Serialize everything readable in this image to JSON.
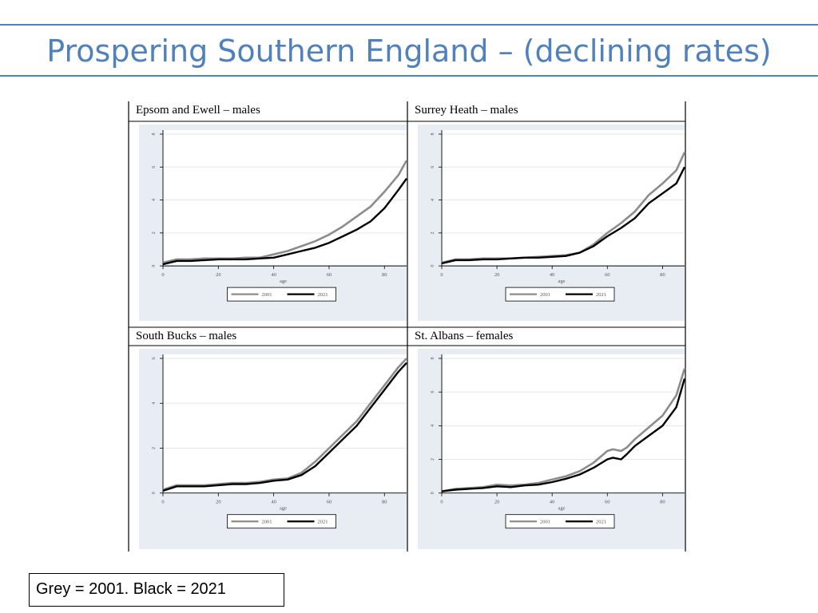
{
  "slide": {
    "title": "Prospering Southern England – (declining rates)",
    "note": "Grey = 2001. Black = 2021"
  },
  "colors": {
    "title": "#4f81bd",
    "series_2001": "#8c8c8c",
    "series_2021": "#000000",
    "plot_bg": "#e8edf3"
  },
  "chart_data": [
    {
      "type": "line",
      "title": "Epsom and Ewell – males",
      "xlabel": "age",
      "xlim": [
        0,
        88
      ],
      "ylim": [
        0,
        8
      ],
      "xticks": [
        0,
        20,
        40,
        60,
        80
      ],
      "yticks": [
        0,
        2,
        4,
        6,
        8
      ],
      "ytick_labels": [
        "0",
        "2",
        "4",
        "6",
        "8"
      ],
      "x": [
        0,
        5,
        10,
        15,
        20,
        25,
        30,
        35,
        40,
        45,
        50,
        55,
        60,
        65,
        70,
        75,
        80,
        85,
        88
      ],
      "series": [
        {
          "name": "2001",
          "values": [
            0.2,
            0.4,
            0.4,
            0.45,
            0.45,
            0.45,
            0.5,
            0.5,
            0.7,
            0.9,
            1.2,
            1.5,
            1.9,
            2.4,
            3.0,
            3.6,
            4.5,
            5.5,
            6.4
          ]
        },
        {
          "name": "2021",
          "values": [
            0.1,
            0.3,
            0.3,
            0.35,
            0.4,
            0.4,
            0.4,
            0.45,
            0.5,
            0.7,
            0.9,
            1.1,
            1.4,
            1.8,
            2.2,
            2.7,
            3.5,
            4.6,
            5.3
          ]
        }
      ],
      "legend": [
        "2001",
        "2021"
      ]
    },
    {
      "type": "line",
      "title": "Surrey Heath – males",
      "xlabel": "age",
      "xlim": [
        0,
        88
      ],
      "ylim": [
        0,
        8
      ],
      "xticks": [
        0,
        20,
        40,
        60,
        80
      ],
      "yticks": [
        0,
        2,
        4,
        6,
        8
      ],
      "ytick_labels": [
        "0",
        "2",
        "4",
        "6",
        "8"
      ],
      "x": [
        0,
        5,
        10,
        15,
        20,
        25,
        30,
        35,
        40,
        45,
        50,
        55,
        60,
        65,
        70,
        75,
        80,
        85,
        88
      ],
      "series": [
        {
          "name": "2001",
          "values": [
            0.2,
            0.4,
            0.4,
            0.45,
            0.45,
            0.45,
            0.5,
            0.55,
            0.6,
            0.65,
            0.8,
            1.3,
            2.0,
            2.6,
            3.3,
            4.3,
            5.0,
            5.8,
            6.9
          ]
        },
        {
          "name": "2021",
          "values": [
            0.15,
            0.35,
            0.35,
            0.4,
            0.4,
            0.45,
            0.5,
            0.5,
            0.55,
            0.6,
            0.8,
            1.2,
            1.8,
            2.3,
            2.9,
            3.8,
            4.4,
            5.0,
            6.0
          ]
        }
      ],
      "legend": [
        "2001",
        "2021"
      ]
    },
    {
      "type": "line",
      "title": "South Bucks – males",
      "xlabel": "age",
      "xlim": [
        0,
        88
      ],
      "ylim": [
        0,
        6
      ],
      "xticks": [
        0,
        20,
        40,
        60,
        80
      ],
      "yticks": [
        0,
        2,
        4,
        6
      ],
      "ytick_labels": [
        "0",
        "2",
        "4",
        "6"
      ],
      "x": [
        0,
        5,
        10,
        15,
        20,
        25,
        30,
        35,
        40,
        45,
        50,
        55,
        60,
        65,
        70,
        75,
        80,
        85,
        88
      ],
      "series": [
        {
          "name": "2001",
          "values": [
            0.15,
            0.35,
            0.35,
            0.35,
            0.4,
            0.45,
            0.45,
            0.5,
            0.6,
            0.65,
            0.9,
            1.4,
            2.0,
            2.6,
            3.2,
            4.0,
            4.8,
            5.6,
            6.0
          ]
        },
        {
          "name": "2021",
          "values": [
            0.1,
            0.3,
            0.3,
            0.3,
            0.35,
            0.4,
            0.4,
            0.45,
            0.55,
            0.6,
            0.8,
            1.2,
            1.8,
            2.4,
            3.0,
            3.8,
            4.6,
            5.4,
            5.8
          ]
        }
      ],
      "legend": [
        "2001",
        "2021"
      ]
    },
    {
      "type": "line",
      "title": "St. Albans – females",
      "xlabel": "age",
      "xlim": [
        0,
        88
      ],
      "ylim": [
        0,
        8
      ],
      "xticks": [
        0,
        20,
        40,
        60,
        80
      ],
      "yticks": [
        0,
        2,
        4,
        6,
        8
      ],
      "ytick_labels": [
        "0",
        "2",
        "4",
        "6",
        "8"
      ],
      "x": [
        0,
        5,
        10,
        15,
        20,
        25,
        30,
        35,
        40,
        45,
        50,
        55,
        60,
        62,
        65,
        67,
        70,
        75,
        80,
        85,
        88
      ],
      "series": [
        {
          "name": "2001",
          "values": [
            0.1,
            0.25,
            0.3,
            0.35,
            0.5,
            0.45,
            0.5,
            0.6,
            0.8,
            1.0,
            1.3,
            1.8,
            2.5,
            2.6,
            2.5,
            2.7,
            3.2,
            3.9,
            4.6,
            5.8,
            7.4
          ]
        },
        {
          "name": "2021",
          "values": [
            0.1,
            0.2,
            0.25,
            0.3,
            0.4,
            0.35,
            0.45,
            0.5,
            0.65,
            0.85,
            1.1,
            1.5,
            2.0,
            2.1,
            2.0,
            2.3,
            2.8,
            3.4,
            4.0,
            5.1,
            6.8
          ]
        }
      ],
      "legend": [
        "2001",
        "2021"
      ]
    }
  ]
}
